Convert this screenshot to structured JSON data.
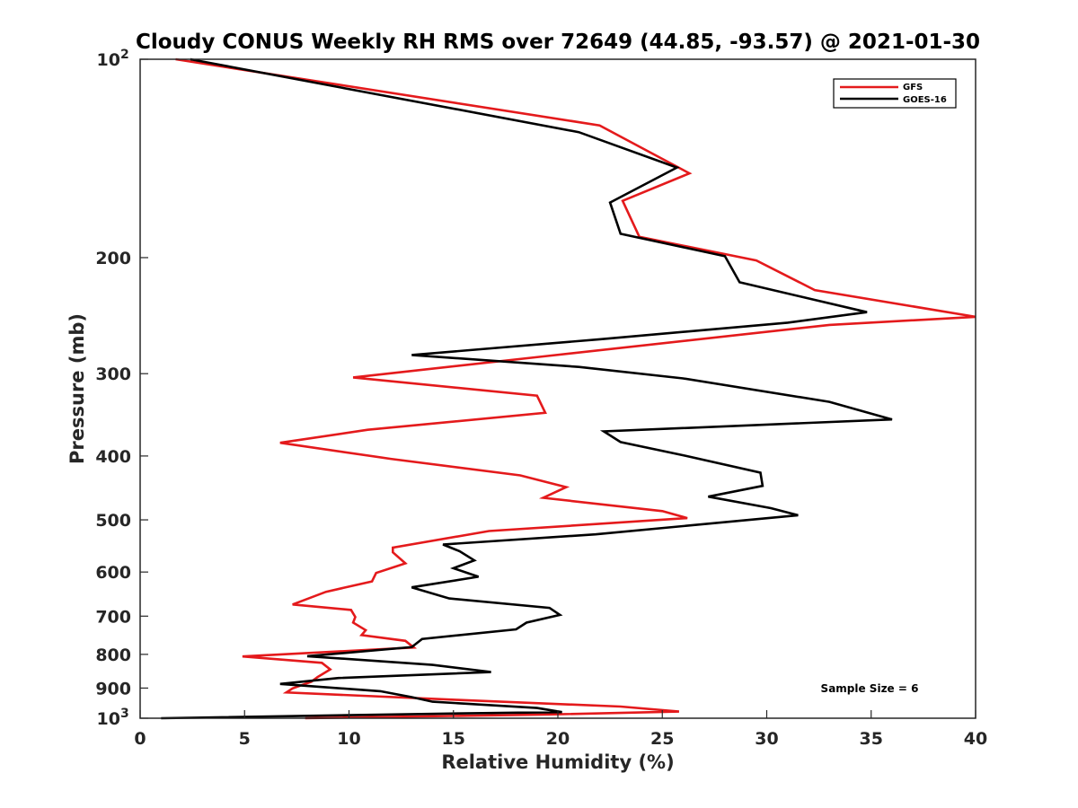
{
  "chart_data": {
    "type": "line",
    "title": "Cloudy CONUS Weekly RH RMS over 72649 (44.85, -93.57) @ 2021-01-30",
    "xlabel": "Relative Humidity (%)",
    "ylabel": "Pressure (mb)",
    "xlim": [
      0,
      40
    ],
    "ylim": [
      100,
      1000
    ],
    "y_scale": "log",
    "y_reversed": true,
    "grid": false,
    "legend_position": "top-right",
    "x_ticks": [
      0,
      5,
      10,
      15,
      20,
      25,
      30,
      35,
      40
    ],
    "y_ticks": [
      {
        "value": 100,
        "base": "10",
        "exp": "2"
      },
      {
        "value": 200,
        "label": "200"
      },
      {
        "value": 300,
        "label": "300"
      },
      {
        "value": 400,
        "label": "400"
      },
      {
        "value": 500,
        "label": "500"
      },
      {
        "value": 600,
        "label": "600"
      },
      {
        "value": 700,
        "label": "700"
      },
      {
        "value": 800,
        "label": "800"
      },
      {
        "value": 900,
        "label": "900"
      },
      {
        "value": 1000,
        "base": "10",
        "exp": "3"
      }
    ],
    "annotation": "Sample Size = 6",
    "series": [
      {
        "name": "GFS",
        "color": "#e41a1c",
        "points": [
          [
            1.7,
            100
          ],
          [
            22.0,
            126
          ],
          [
            26.3,
            149
          ],
          [
            23.1,
            164
          ],
          [
            23.9,
            186
          ],
          [
            29.5,
            202
          ],
          [
            32.3,
            224
          ],
          [
            40.0,
            246
          ],
          [
            33.0,
            253
          ],
          [
            19.5,
            282
          ],
          [
            10.2,
            304
          ],
          [
            19.0,
            324
          ],
          [
            19.4,
            344
          ],
          [
            10.9,
            365
          ],
          [
            6.7,
            382
          ],
          [
            12.0,
            404
          ],
          [
            18.2,
            428
          ],
          [
            20.4,
            446
          ],
          [
            19.3,
            463
          ],
          [
            25.0,
            485
          ],
          [
            26.2,
            497
          ],
          [
            16.7,
            520
          ],
          [
            12.1,
            551
          ],
          [
            12.1,
            560
          ],
          [
            12.7,
            582
          ],
          [
            11.3,
            602
          ],
          [
            11.1,
            620
          ],
          [
            8.9,
            643
          ],
          [
            7.3,
            672
          ],
          [
            10.1,
            685
          ],
          [
            10.3,
            702
          ],
          [
            10.2,
            716
          ],
          [
            10.8,
            735
          ],
          [
            10.6,
            748
          ],
          [
            12.7,
            763
          ],
          [
            13.1,
            781
          ],
          [
            4.9,
            806
          ],
          [
            8.7,
            824
          ],
          [
            9.1,
            843
          ],
          [
            8.5,
            866
          ],
          [
            8.2,
            880
          ],
          [
            7.3,
            901
          ],
          [
            7.0,
            914
          ],
          [
            15.2,
            938
          ],
          [
            23.0,
            960
          ],
          [
            25.8,
            977
          ],
          [
            19.6,
            987
          ],
          [
            7.9,
            1000
          ]
        ]
      },
      {
        "name": "GOES-16",
        "color": "#000000",
        "points": [
          [
            2.4,
            100
          ],
          [
            21.0,
            129
          ],
          [
            25.7,
            146
          ],
          [
            22.5,
            165
          ],
          [
            23.0,
            184
          ],
          [
            28.0,
            199
          ],
          [
            28.7,
            218
          ],
          [
            34.8,
            242
          ],
          [
            31.0,
            251
          ],
          [
            22.0,
            266
          ],
          [
            13.0,
            281
          ],
          [
            21.0,
            293
          ],
          [
            26.0,
            305
          ],
          [
            33.0,
            331
          ],
          [
            36.0,
            352
          ],
          [
            22.2,
            367
          ],
          [
            23.0,
            381
          ],
          [
            26.0,
            399
          ],
          [
            29.7,
            424
          ],
          [
            29.8,
            444
          ],
          [
            27.2,
            461
          ],
          [
            30.2,
            480
          ],
          [
            31.5,
            492
          ],
          [
            21.8,
            526
          ],
          [
            14.5,
            545
          ],
          [
            15.3,
            558
          ],
          [
            16.0,
            576
          ],
          [
            15.0,
            592
          ],
          [
            16.2,
            610
          ],
          [
            13.0,
            633
          ],
          [
            14.8,
            658
          ],
          [
            19.6,
            680
          ],
          [
            20.1,
            697
          ],
          [
            18.5,
            716
          ],
          [
            18.0,
            733
          ],
          [
            13.5,
            758
          ],
          [
            13.0,
            780
          ],
          [
            8.0,
            805
          ],
          [
            14.0,
            830
          ],
          [
            16.8,
            851
          ],
          [
            9.5,
            869
          ],
          [
            6.7,
            887
          ],
          [
            11.5,
            910
          ],
          [
            13.0,
            929
          ],
          [
            14.0,
            944
          ],
          [
            19.0,
            965
          ],
          [
            20.2,
            979
          ],
          [
            14.5,
            984
          ],
          [
            1.0,
            1000
          ]
        ]
      }
    ]
  }
}
